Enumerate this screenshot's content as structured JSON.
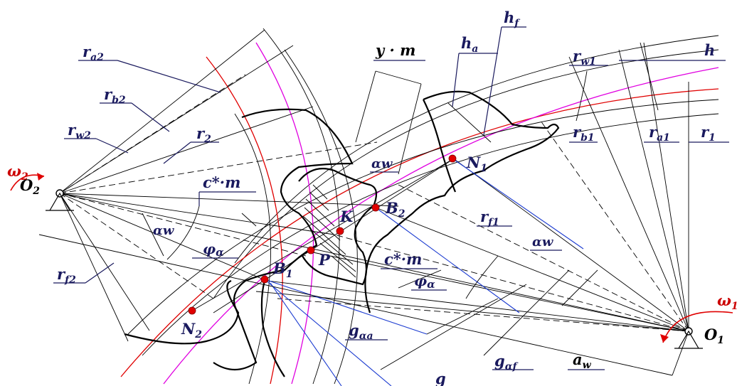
{
  "labels": {
    "ra2": {
      "main": "r",
      "sub": "a2"
    },
    "rb2": {
      "main": "r",
      "sub": "b2"
    },
    "rw2": {
      "main": "r",
      "sub": "w2"
    },
    "r2": {
      "main": "r",
      "sub": "2"
    },
    "rf2": {
      "main": "r",
      "sub": "f2"
    },
    "ym": "y · m",
    "ha": {
      "main": "h",
      "sub": "a"
    },
    "hf": {
      "main": "h",
      "sub": "f"
    },
    "rw1": {
      "main": "r",
      "sub": "w1"
    },
    "h": "h",
    "rb1": {
      "main": "r",
      "sub": "b1"
    },
    "ra1": {
      "main": "r",
      "sub": "a1"
    },
    "r1": {
      "main": "r",
      "sub": "1"
    },
    "rf1": {
      "main": "r",
      "sub": "f1"
    },
    "aw": {
      "main": "a",
      "sub": "w"
    },
    "cm1": "c*·m",
    "cm2": "c*·m",
    "alpha_w_1": "αw",
    "alpha_w_2": "αw",
    "alpha_w_3": "αw",
    "phi_a_1": {
      "main": "φ",
      "sub": "α"
    },
    "phi_a_2": {
      "main": "φ",
      "sub": "α"
    },
    "g_aa": {
      "main": "g",
      "sub": "αa"
    },
    "g_af": {
      "main": "g",
      "sub": "αf"
    },
    "g": "g",
    "omega2": {
      "main": "ω",
      "sub": "2"
    },
    "omega1": {
      "main": "ω",
      "sub": "1"
    },
    "O2": {
      "main": "O",
      "sub": "2"
    },
    "O1": {
      "main": "O",
      "sub": "1"
    },
    "N1": {
      "main": "N",
      "sub": "1"
    },
    "N2": {
      "main": "N",
      "sub": "2"
    },
    "B1": {
      "main": "B",
      "sub": "1"
    },
    "B2": {
      "main": "B",
      "sub": "2"
    },
    "K": "K",
    "P": "P"
  },
  "colors": {
    "pitch": "#e00000",
    "base": "#e000e0",
    "action_line": "#1a3ad0",
    "label": "#1a1a5e"
  }
}
